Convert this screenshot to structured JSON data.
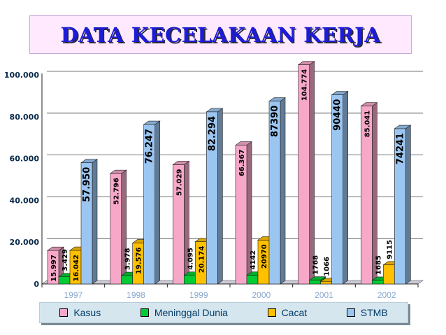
{
  "title": "DATA KECELAKAAN KERJA",
  "colors": {
    "kasus": "#f7a8c9",
    "meninggal": "#00cc33",
    "cacat": "#ffc000",
    "stmb": "#9cc6f2"
  },
  "chart_data": {
    "type": "bar",
    "title": "DATA KECELAKAAN KERJA",
    "xlabel": "",
    "ylabel": "",
    "ylim": [
      0,
      100000
    ],
    "yticks": [
      "0",
      "20.000",
      "40.000",
      "60.000",
      "80.000",
      "100.000"
    ],
    "grid": true,
    "legend_position": "bottom",
    "categories": [
      "1997",
      "1998",
      "1999",
      "2000",
      "2001",
      "2002"
    ],
    "series": [
      {
        "name": "Kasus",
        "values": [
          15997,
          52796,
          57029,
          66367,
          104774,
          85041
        ],
        "labels": [
          "15.997",
          "52.796",
          "57.029",
          "66.367",
          "104.774",
          "85.041"
        ]
      },
      {
        "name": "Meninggal Dunia",
        "values": [
          3429,
          3978,
          4095,
          4142,
          1768,
          1685
        ],
        "labels": [
          "3.429",
          "3.978",
          "4.095",
          "4142",
          "1768",
          "1685"
        ]
      },
      {
        "name": "Cacat",
        "values": [
          16042,
          19576,
          20174,
          20970,
          1066,
          9115
        ],
        "labels": [
          "16.042",
          "19.576",
          "20.174",
          "20970",
          "1066",
          "9115"
        ]
      },
      {
        "name": "STMB",
        "values": [
          57950,
          76247,
          82294,
          87390,
          90440,
          74241
        ],
        "labels": [
          "57.950",
          "76.247",
          "82.294",
          "87390",
          "90440",
          "74241"
        ]
      }
    ]
  }
}
